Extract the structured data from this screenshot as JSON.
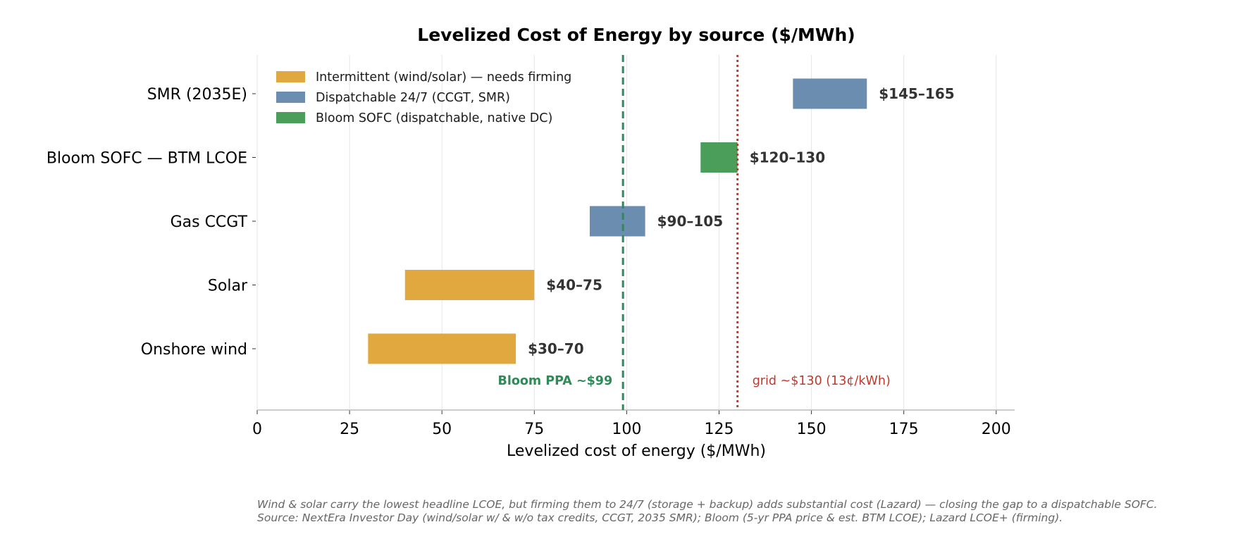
{
  "chart_data": {
    "type": "bar",
    "orientation": "horizontal-range",
    "title": "Levelized Cost of Energy by source ($/MWh)",
    "xlabel": "Levelized cost of energy ($/MWh)",
    "ylabel": "",
    "xlim": [
      0,
      205
    ],
    "xticks": [
      0,
      25,
      50,
      75,
      100,
      125,
      150,
      175,
      200
    ],
    "grid": "vertical",
    "legend_position": "top-left",
    "categories": [
      {
        "label": "SMR (2035E)",
        "low": 145,
        "high": 165,
        "group": 1,
        "value_label": "$145–165"
      },
      {
        "label": "Bloom SOFC — BTM LCOE",
        "low": 120,
        "high": 130,
        "group": 2,
        "value_label": "$120–130"
      },
      {
        "label": "Gas CCGT",
        "low": 90,
        "high": 105,
        "group": 1,
        "value_label": "$90–105"
      },
      {
        "label": "Solar",
        "low": 40,
        "high": 75,
        "group": 0,
        "value_label": "$40–75"
      },
      {
        "label": "Onshore wind",
        "low": 30,
        "high": 70,
        "group": 0,
        "value_label": "$30–70"
      }
    ],
    "groups": [
      {
        "name": "Intermittent (wind/solar) — needs firming",
        "color": "#e0a83e"
      },
      {
        "name": "Dispatchable 24/7 (CCGT, SMR)",
        "color": "#6a8db0"
      },
      {
        "name": "Bloom SOFC (dispatchable, native DC)",
        "color": "#4a9e5a"
      }
    ],
    "reference_lines": [
      {
        "value": 99,
        "label": "Bloom PPA ~$99",
        "color": "#2e8b57",
        "style": "dashed"
      },
      {
        "value": 130,
        "label": "grid ~$130 (13¢/kWh)",
        "color": "#c0392b",
        "style": "dotted"
      }
    ]
  },
  "footnote": {
    "line1": "Wind & solar carry the lowest headline LCOE, but firming them to 24/7 (storage + backup) adds substantial cost (Lazard) — closing the gap to a dispatchable SOFC.",
    "line2": "Source: NextEra Investor Day (wind/solar w/ & w/o tax credits, CCGT, 2035 SMR); Bloom (5-yr PPA price & est. BTM LCOE); Lazard LCOE+ (firming)."
  }
}
